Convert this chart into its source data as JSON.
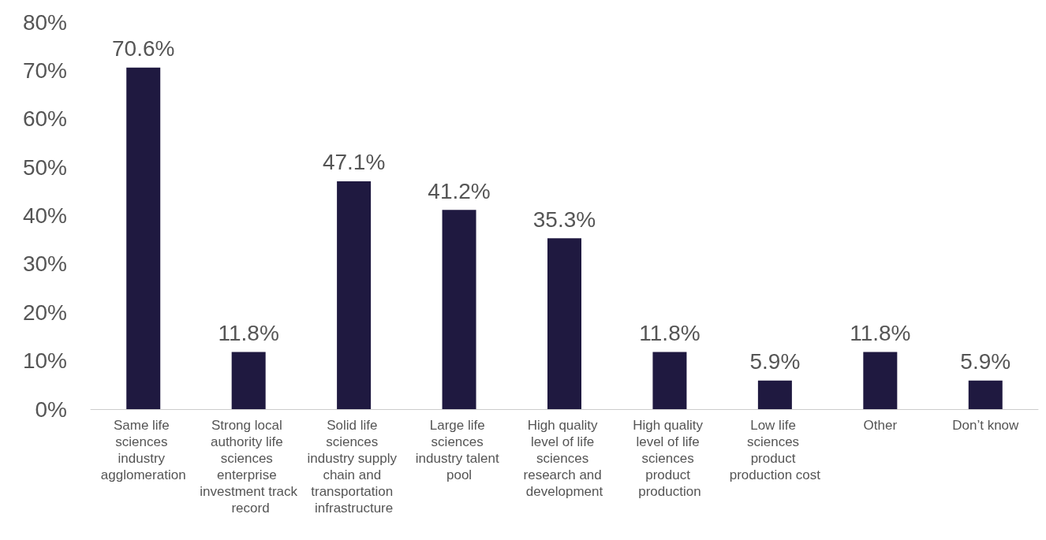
{
  "chart_data": {
    "type": "bar",
    "categories": [
      "Same life sciences industry agglomeration",
      "Strong local authority life sciences enterprise investment track record",
      "Solid life sciences industry supply chain and transportation infrastructure",
      "Large life sciences industry talent pool",
      "High quality level of life sciences research and development",
      "High quality level of life sciences product production",
      "Low life sciences product production cost",
      "Other",
      "Don’t know"
    ],
    "values": [
      70.6,
      11.8,
      47.1,
      41.2,
      35.3,
      11.8,
      5.9,
      11.8,
      5.9
    ],
    "value_labels": [
      "70.6%",
      "11.8%",
      "47.1%",
      "41.2%",
      "35.3%",
      "11.8%",
      "5.9%",
      "11.8%",
      "5.9%"
    ],
    "color": "#1f1940",
    "ylim": [
      0,
      80
    ],
    "yticks": [
      {
        "value": 0,
        "label": "0%"
      },
      {
        "value": 10,
        "label": "10%"
      },
      {
        "value": 20,
        "label": "20%"
      },
      {
        "value": 30,
        "label": "30%"
      },
      {
        "value": 40,
        "label": "40%"
      },
      {
        "value": 50,
        "label": "50%"
      },
      {
        "value": 60,
        "label": "60%"
      },
      {
        "value": 70,
        "label": "70%"
      },
      {
        "value": 80,
        "label": "80%"
      }
    ],
    "grid": false
  }
}
